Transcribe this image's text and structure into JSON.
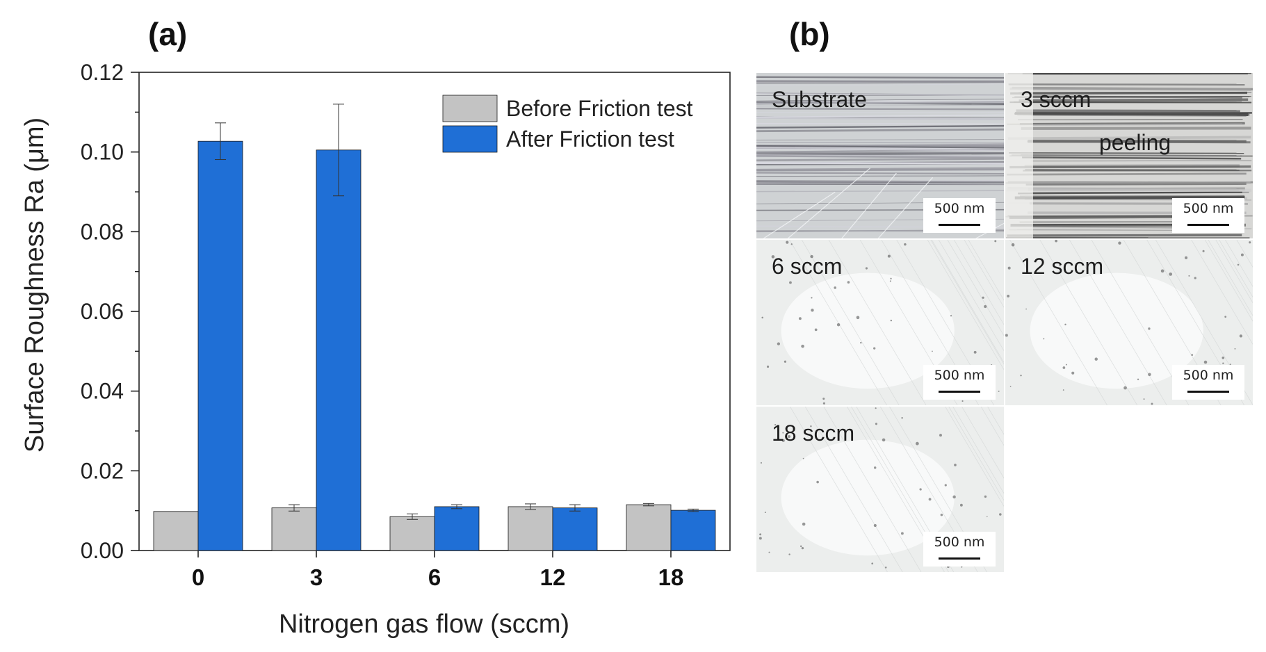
{
  "panel_labels": {
    "a": "(a)",
    "b": "(b)"
  },
  "chart_data": {
    "type": "bar",
    "title": "",
    "xlabel": "Nitrogen gas flow (sccm)",
    "ylabel": "Surface Roughness Ra (μm)",
    "categories": [
      "0",
      "3",
      "6",
      "12",
      "18"
    ],
    "ylim": [
      0,
      0.12
    ],
    "yticks": [
      0.0,
      0.02,
      0.04,
      0.06,
      0.08,
      0.1,
      0.12
    ],
    "ytick_labels": [
      "0.00",
      "0.02",
      "0.04",
      "0.06",
      "0.08",
      "0.10",
      "0.12"
    ],
    "grid": false,
    "legend_position": "top-right",
    "series": [
      {
        "name": "Before Friction test",
        "color": "#c3c3c3",
        "values": [
          0.0098,
          0.0107,
          0.0085,
          0.011,
          0.0115
        ],
        "errors": [
          0,
          0.0008,
          0.0007,
          0.0007,
          0.0003
        ]
      },
      {
        "name": "After Friction test",
        "color": "#1f6fd6",
        "values": [
          0.1027,
          0.1005,
          0.011,
          0.0107,
          0.0101
        ],
        "errors": [
          0.0046,
          0.0115,
          0.0005,
          0.0008,
          0.0003
        ]
      }
    ]
  },
  "micrographs": [
    {
      "label": "Substrate",
      "scale": "500 nm",
      "style": "scratched"
    },
    {
      "label": "3 sccm",
      "scale": "500 nm",
      "style": "peeling",
      "annotation": "peeling"
    },
    {
      "label": "6 sccm",
      "scale": "500 nm",
      "style": "smooth"
    },
    {
      "label": "12 sccm",
      "scale": "500 nm",
      "style": "smooth"
    },
    {
      "label": "18 sccm",
      "scale": "500 nm",
      "style": "smooth"
    }
  ]
}
